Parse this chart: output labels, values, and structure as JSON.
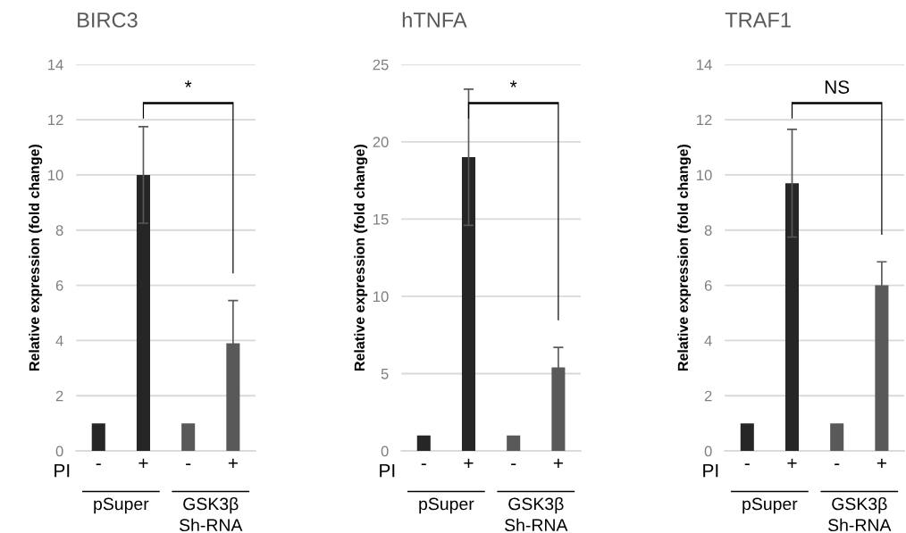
{
  "chart_data": [
    {
      "type": "bar",
      "title": "BIRC3",
      "ylabel": "Relative expression (fold change)",
      "categories": [
        "-",
        "+",
        "-",
        "+"
      ],
      "values": [
        1,
        10.0,
        1,
        3.9
      ],
      "errors": [
        null,
        1.75,
        null,
        1.55
      ],
      "colors": [
        "#262626",
        "#262626",
        "#595959",
        "#595959"
      ],
      "ylim": [
        0,
        14
      ],
      "yticks": [
        0,
        2,
        4,
        6,
        8,
        10,
        12,
        14
      ],
      "grid": "y",
      "annotations": [
        "PI",
        "pSuper",
        "GSK3β\nSh-RNA",
        "*"
      ]
    },
    {
      "type": "bar",
      "title": "hTNFA",
      "ylabel": "Relative expression (fold change)",
      "categories": [
        "-",
        "+",
        "-",
        "+"
      ],
      "values": [
        1,
        19.0,
        1,
        5.4
      ],
      "errors": [
        null,
        4.4,
        null,
        1.3
      ],
      "colors": [
        "#262626",
        "#262626",
        "#595959",
        "#595959"
      ],
      "ylim": [
        0,
        25
      ],
      "yticks": [
        0,
        5,
        10,
        15,
        20,
        25
      ],
      "grid": "y",
      "annotations": [
        "PI",
        "pSuper",
        "GSK3β\nSh-RNA",
        "*"
      ]
    },
    {
      "type": "bar",
      "title": "TRAF1",
      "ylabel": "Relative expression (fold change)",
      "categories": [
        "-",
        "+",
        "-",
        "+"
      ],
      "values": [
        1,
        9.7,
        1,
        6.0
      ],
      "errors": [
        null,
        1.95,
        null,
        0.85
      ],
      "colors": [
        "#262626",
        "#262626",
        "#595959",
        "#595959"
      ],
      "ylim": [
        0,
        14
      ],
      "yticks": [
        0,
        2,
        4,
        6,
        8,
        10,
        12,
        14
      ],
      "grid": "y",
      "annotations": [
        "PI",
        "pSuper",
        "GSK3β\nSh-RNA",
        "NS"
      ]
    }
  ]
}
